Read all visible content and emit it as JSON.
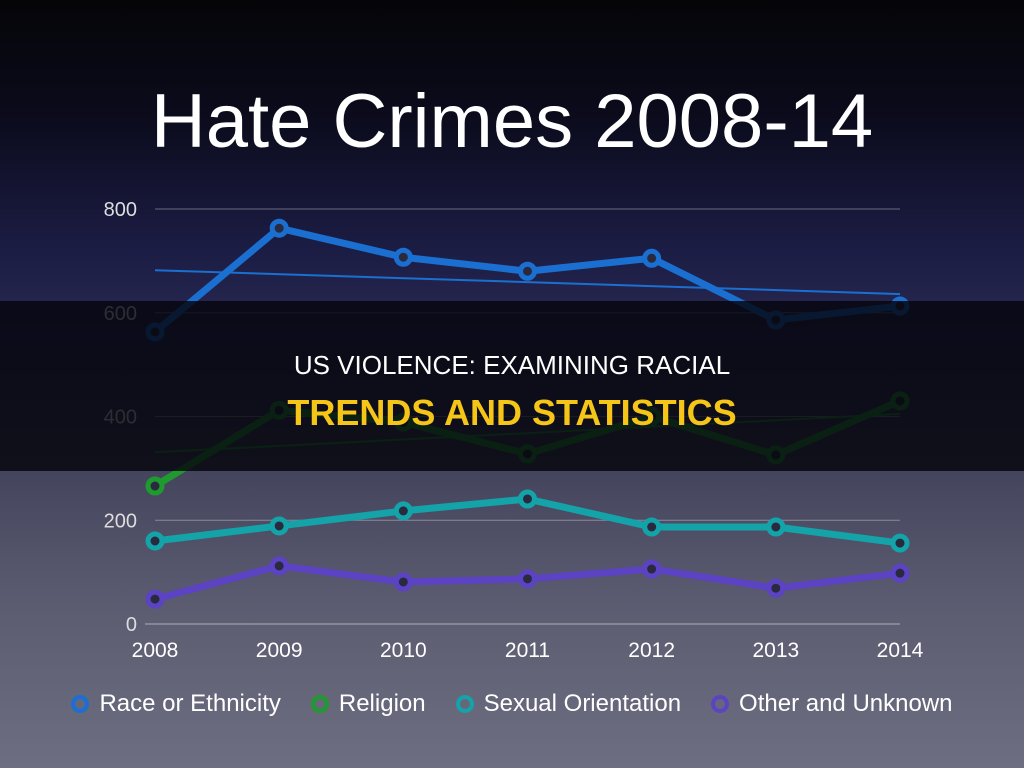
{
  "title": "Hate Crimes 2008-14",
  "banner": {
    "line1": "US VIOLENCE: EXAMINING RACIAL",
    "line2": "TRENDS AND STATISTICS"
  },
  "chart_data": {
    "type": "line",
    "title": "Hate Crimes 2008-14",
    "categories": [
      "2008",
      "2009",
      "2010",
      "2011",
      "2012",
      "2013",
      "2014"
    ],
    "ylim": [
      0,
      800
    ],
    "yticks": [
      0,
      200,
      400,
      600,
      800
    ],
    "grid": true,
    "legend": "bottom",
    "series": [
      {
        "name": "Race or Ethnicity",
        "color": "#1a6fd0",
        "values": [
          563,
          763,
          707,
          680,
          705,
          586,
          613
        ],
        "trend": [
          682,
          636
        ]
      },
      {
        "name": "Religion",
        "color": "#1f9a2e",
        "values": [
          266,
          412,
          389,
          328,
          400,
          326,
          430
        ],
        "trend": [
          331,
          405
        ]
      },
      {
        "name": "Sexual Orientation",
        "color": "#13a3a8",
        "values": [
          160,
          189,
          218,
          241,
          187,
          187,
          156
        ]
      },
      {
        "name": "Other and Unknown",
        "color": "#5b43c4",
        "values": [
          48,
          112,
          81,
          87,
          106,
          69,
          98
        ]
      }
    ]
  }
}
